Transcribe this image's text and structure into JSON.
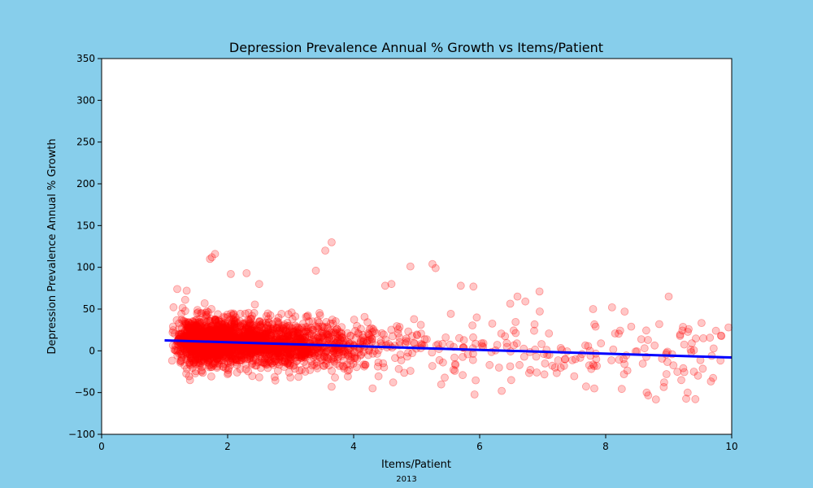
{
  "chart_data": {
    "type": "scatter",
    "title": "Depression Prevalence Annual % Growth vs Items/Patient",
    "xlabel": "Items/Patient",
    "ylabel": "Depression Prevalence Annual % Growth",
    "caption": "2013",
    "xlim": [
      0,
      10
    ],
    "ylim": [
      -100,
      350
    ],
    "xticks": [
      0,
      2,
      4,
      6,
      8,
      10
    ],
    "yticks": [
      -100,
      -50,
      0,
      50,
      100,
      150,
      200,
      250,
      300,
      350
    ],
    "grid": false,
    "colors": {
      "points": "#ff0000",
      "trend": "#0000ff",
      "background": "#87ceeb",
      "plot_area": "#ffffff"
    },
    "trend_line": {
      "x": [
        1.0,
        10.0
      ],
      "y": [
        12.5,
        -8.0
      ]
    },
    "points_note_outliers": [
      {
        "x": 1.75,
        "y": 112
      },
      {
        "x": 1.8,
        "y": 116
      },
      {
        "x": 1.72,
        "y": 110
      },
      {
        "x": 3.55,
        "y": 120
      },
      {
        "x": 3.65,
        "y": 130
      },
      {
        "x": 3.4,
        "y": 96
      },
      {
        "x": 4.9,
        "y": 101
      },
      {
        "x": 5.25,
        "y": 104
      },
      {
        "x": 5.3,
        "y": 99
      },
      {
        "x": 9.0,
        "y": 65
      },
      {
        "x": 8.65,
        "y": -50
      },
      {
        "x": 9.3,
        "y": -50
      },
      {
        "x": 9.95,
        "y": 28
      },
      {
        "x": 9.75,
        "y": 24
      },
      {
        "x": 6.95,
        "y": 71
      },
      {
        "x": 4.5,
        "y": 78
      },
      {
        "x": 4.6,
        "y": 80
      },
      {
        "x": 1.35,
        "y": 72
      },
      {
        "x": 1.2,
        "y": 74
      },
      {
        "x": 2.05,
        "y": 92
      },
      {
        "x": 2.3,
        "y": 93
      },
      {
        "x": 2.5,
        "y": 80
      },
      {
        "x": 5.7,
        "y": 78
      },
      {
        "x": 5.9,
        "y": 77
      },
      {
        "x": 6.6,
        "y": 65
      },
      {
        "x": 7.8,
        "y": 50
      },
      {
        "x": 8.3,
        "y": 47
      },
      {
        "x": 8.1,
        "y": 52
      },
      {
        "x": 8.85,
        "y": 32
      },
      {
        "x": 9.55,
        "y": 15
      },
      {
        "x": 9.2,
        "y": -35
      },
      {
        "x": 9.4,
        "y": -25
      },
      {
        "x": 4.3,
        "y": -45
      },
      {
        "x": 6.35,
        "y": -48
      },
      {
        "x": 6.5,
        "y": -35
      },
      {
        "x": 3.65,
        "y": -43
      },
      {
        "x": 2.0,
        "y": -28
      }
    ]
  }
}
